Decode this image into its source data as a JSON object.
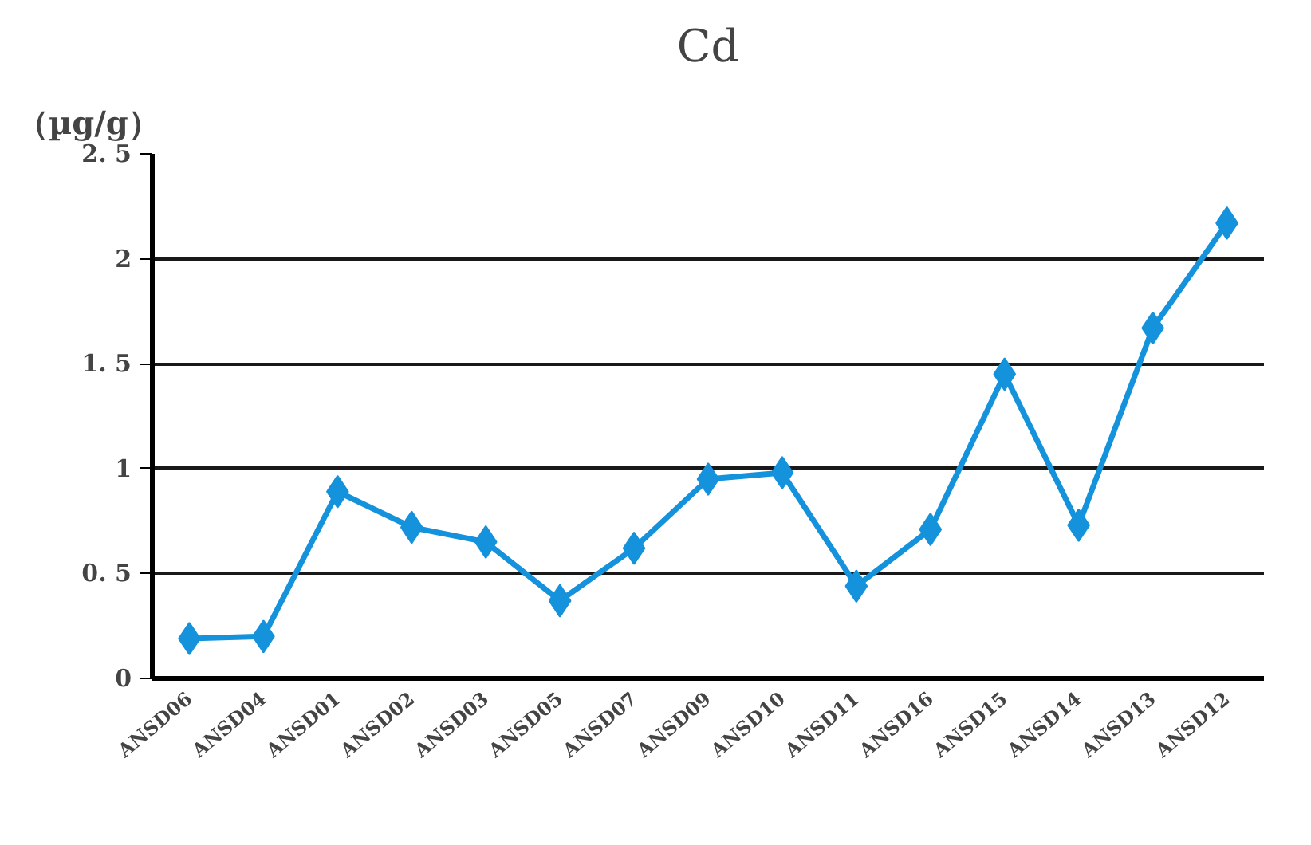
{
  "chart_data": {
    "type": "line",
    "title": "Cd",
    "ylabel": "（µg/g）",
    "categories": [
      "ANSD06",
      "ANSD04",
      "ANSD01",
      "ANSD02",
      "ANSD03",
      "ANSD05",
      "ANSD07",
      "ANSD09",
      "ANSD10",
      "ANSD11",
      "ANSD16",
      "ANSD15",
      "ANSD14",
      "ANSD13",
      "ANSD12"
    ],
    "series": [
      {
        "color": "#1592dc",
        "values": [
          0.19,
          0.2,
          0.89,
          0.72,
          0.65,
          0.37,
          0.62,
          0.95,
          0.98,
          0.44,
          0.71,
          1.45,
          0.73,
          1.67,
          2.17
        ]
      }
    ],
    "ylim": [
      0,
      2.5
    ],
    "yticks": [
      0,
      {
        "value": 0.5,
        "label": "0. 5"
      },
      1,
      {
        "value": 1.5,
        "label": "1. 5"
      },
      2,
      {
        "value": 2.5,
        "label": "2. 5"
      }
    ],
    "grid": "y",
    "marker": "diamond",
    "line_style": "solid"
  }
}
